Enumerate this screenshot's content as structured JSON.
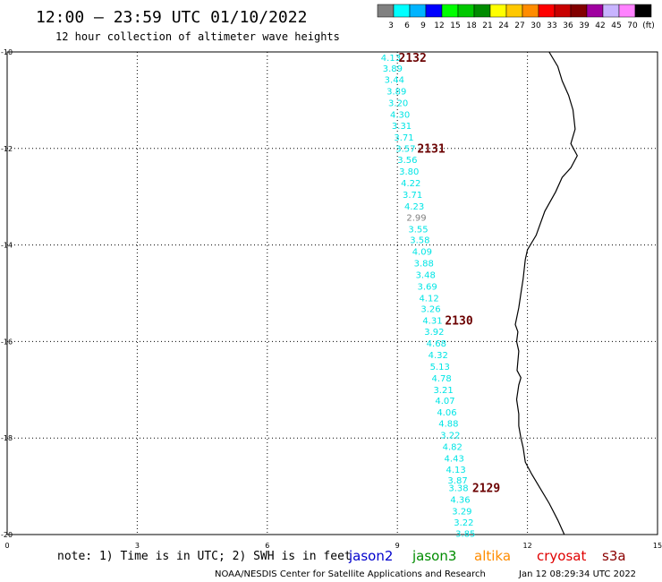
{
  "title": "12:00 – 23:59 UTC 01/10/2022",
  "subtitle": "12 hour collection of altimeter wave heights",
  "legend": {
    "colors": [
      "#808080",
      "#00ffff",
      "#00b4ff",
      "#0000ff",
      "#00ff00",
      "#00c800",
      "#008c00",
      "#ffff00",
      "#ffc800",
      "#ff8c00",
      "#ff0000",
      "#c80000",
      "#820000",
      "#a000a0",
      "#c8b4ff",
      "#ff82ff",
      "#000000"
    ],
    "labels": [
      "3",
      "6",
      "9",
      "12",
      "15",
      "18",
      "21",
      "24",
      "27",
      "30",
      "33",
      "36",
      "39",
      "42",
      "45",
      "70",
      "(ft)"
    ]
  },
  "x_ticks": [
    "0",
    "3",
    "6",
    "9",
    "12",
    "15"
  ],
  "y_ticks": [
    "-10",
    "-12",
    "-14",
    "-16",
    "-18",
    "-20"
  ],
  "track": {
    "color": "#00e5e5",
    "low_color": "#808080",
    "values": [
      "4.13",
      "3.89",
      "3.44",
      "3.89",
      "3.20",
      "4.30",
      "3.31",
      "3.71",
      "3.57",
      "3.56",
      "3.80",
      "4.22",
      "3.71",
      "4.23",
      "2.99",
      "3.55",
      "3.58",
      "4.09",
      "3.88",
      "3.48",
      "3.69",
      "4.12",
      "3.26",
      "4.31",
      "3.92",
      "4.68",
      "4.32",
      "5.13",
      "4.78",
      "3.21",
      "4.07",
      "4.06",
      "4.88",
      "3.22",
      "4.82",
      "4.43",
      "4.13",
      "3.87",
      "3.38",
      "4.36",
      "3.29",
      "3.22",
      "3.85"
    ],
    "lat": [
      -10.11,
      -10.33,
      -10.57,
      -10.81,
      -11.05,
      -11.29,
      -11.52,
      -11.76,
      -11.99,
      -12.23,
      -12.47,
      -12.71,
      -12.95,
      -13.19,
      -13.42,
      -13.66,
      -13.89,
      -14.13,
      -14.37,
      -14.61,
      -14.85,
      -15.09,
      -15.32,
      -15.56,
      -15.79,
      -16.03,
      -16.27,
      -16.51,
      -16.75,
      -16.99,
      -17.22,
      -17.46,
      -17.69,
      -17.93,
      -18.17,
      -18.41,
      -18.65,
      -18.87,
      -19.03,
      -19.27,
      -19.51,
      -19.74,
      -19.97
    ],
    "lon": [
      8.85,
      8.89,
      8.93,
      8.98,
      9.02,
      9.06,
      9.1,
      9.15,
      9.19,
      9.23,
      9.27,
      9.31,
      9.35,
      9.39,
      9.44,
      9.48,
      9.52,
      9.57,
      9.61,
      9.65,
      9.69,
      9.73,
      9.77,
      9.81,
      9.85,
      9.9,
      9.94,
      9.98,
      10.02,
      10.06,
      10.1,
      10.14,
      10.18,
      10.22,
      10.27,
      10.31,
      10.35,
      10.39,
      10.41,
      10.45,
      10.49,
      10.53,
      10.57
    ]
  },
  "time_labels": [
    {
      "text": "2132",
      "lat": -10.11,
      "lon": 9.35
    },
    {
      "text": "2131",
      "lat": -11.99,
      "lon": 9.78
    },
    {
      "text": "2130",
      "lat": -15.56,
      "lon": 10.42
    },
    {
      "text": "2129",
      "lat": -19.03,
      "lon": 11.05
    }
  ],
  "coastline": [
    [
      12.5,
      -10.0
    ],
    [
      12.7,
      -10.3
    ],
    [
      12.8,
      -10.6
    ],
    [
      12.95,
      -10.9
    ],
    [
      13.05,
      -11.2
    ],
    [
      13.1,
      -11.6
    ],
    [
      13.0,
      -11.9
    ],
    [
      13.15,
      -12.15
    ],
    [
      13.0,
      -12.4
    ],
    [
      12.8,
      -12.6
    ],
    [
      12.65,
      -12.9
    ],
    [
      12.4,
      -13.3
    ],
    [
      12.2,
      -13.8
    ],
    [
      12.0,
      -14.1
    ],
    [
      11.95,
      -14.3
    ],
    [
      11.9,
      -14.7
    ],
    [
      11.85,
      -15.0
    ],
    [
      11.8,
      -15.3
    ],
    [
      11.72,
      -15.65
    ],
    [
      11.78,
      -15.8
    ],
    [
      11.75,
      -16.0
    ],
    [
      11.8,
      -16.2
    ],
    [
      11.76,
      -16.6
    ],
    [
      11.85,
      -16.75
    ],
    [
      11.8,
      -16.9
    ],
    [
      11.75,
      -17.2
    ],
    [
      11.8,
      -17.5
    ],
    [
      11.8,
      -17.75
    ],
    [
      11.85,
      -18.0
    ],
    [
      11.9,
      -18.2
    ],
    [
      11.95,
      -18.5
    ],
    [
      12.1,
      -18.75
    ],
    [
      12.3,
      -19.05
    ],
    [
      12.5,
      -19.35
    ],
    [
      12.7,
      -19.7
    ],
    [
      12.85,
      -20.0
    ]
  ],
  "note": "note: 1) Time is in UTC; 2) SWH is in feet",
  "satellites": [
    {
      "name": "jason2",
      "color": "#0000cc"
    },
    {
      "name": "jason3",
      "color": "#008c00"
    },
    {
      "name": "altika",
      "color": "#ff8c00"
    },
    {
      "name": "cryosat",
      "color": "#e00000"
    },
    {
      "name": "s3a",
      "color": "#8b0000"
    }
  ],
  "footer_left": "NOAA/NESDIS Center for Satellite Applications and Research",
  "footer_right": "Jan 12 08:29:34 UTC 2022"
}
